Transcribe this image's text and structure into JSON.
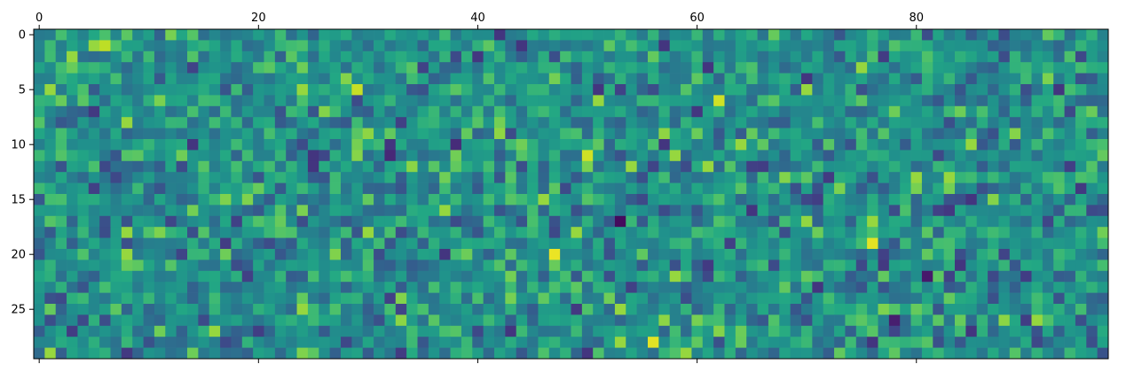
{
  "chart_data": {
    "type": "heatmap",
    "title": "",
    "xlabel": "",
    "ylabel": "",
    "rows": 30,
    "cols": 98,
    "colormap": "viridis",
    "value_range": [
      -3.5,
      3.5
    ],
    "x_ticks": [
      0,
      20,
      40,
      60,
      80
    ],
    "x_tick_labels": [
      "0",
      "20",
      "40",
      "60",
      "80"
    ],
    "x_axis_labels_position": "top",
    "y_ticks": [
      0,
      5,
      10,
      15,
      20,
      25
    ],
    "y_tick_labels": [
      "0",
      "5",
      "10",
      "15",
      "20",
      "25"
    ],
    "y_axis_inverted": true,
    "grid": false,
    "legend": "none",
    "value_generation": "approximate random normal field (seeded)",
    "highlighted_cells": [
      {
        "row": 17,
        "col": 53,
        "value": -3.3
      },
      {
        "row": 22,
        "col": 81,
        "value": -3.0
      },
      {
        "row": 26,
        "col": 78,
        "value": -2.9
      },
      {
        "row": 11,
        "col": 32,
        "value": -2.7
      },
      {
        "row": 10,
        "col": 38,
        "value": -2.6
      },
      {
        "row": 20,
        "col": 47,
        "value": 3.3
      },
      {
        "row": 19,
        "col": 76,
        "value": 3.2
      },
      {
        "row": 28,
        "col": 56,
        "value": 3.2
      },
      {
        "row": 6,
        "col": 62,
        "value": 3.0
      },
      {
        "row": 11,
        "col": 50,
        "value": 3.0
      },
      {
        "row": 1,
        "col": 6,
        "value": 2.8
      },
      {
        "row": 5,
        "col": 29,
        "value": 2.9
      }
    ]
  }
}
